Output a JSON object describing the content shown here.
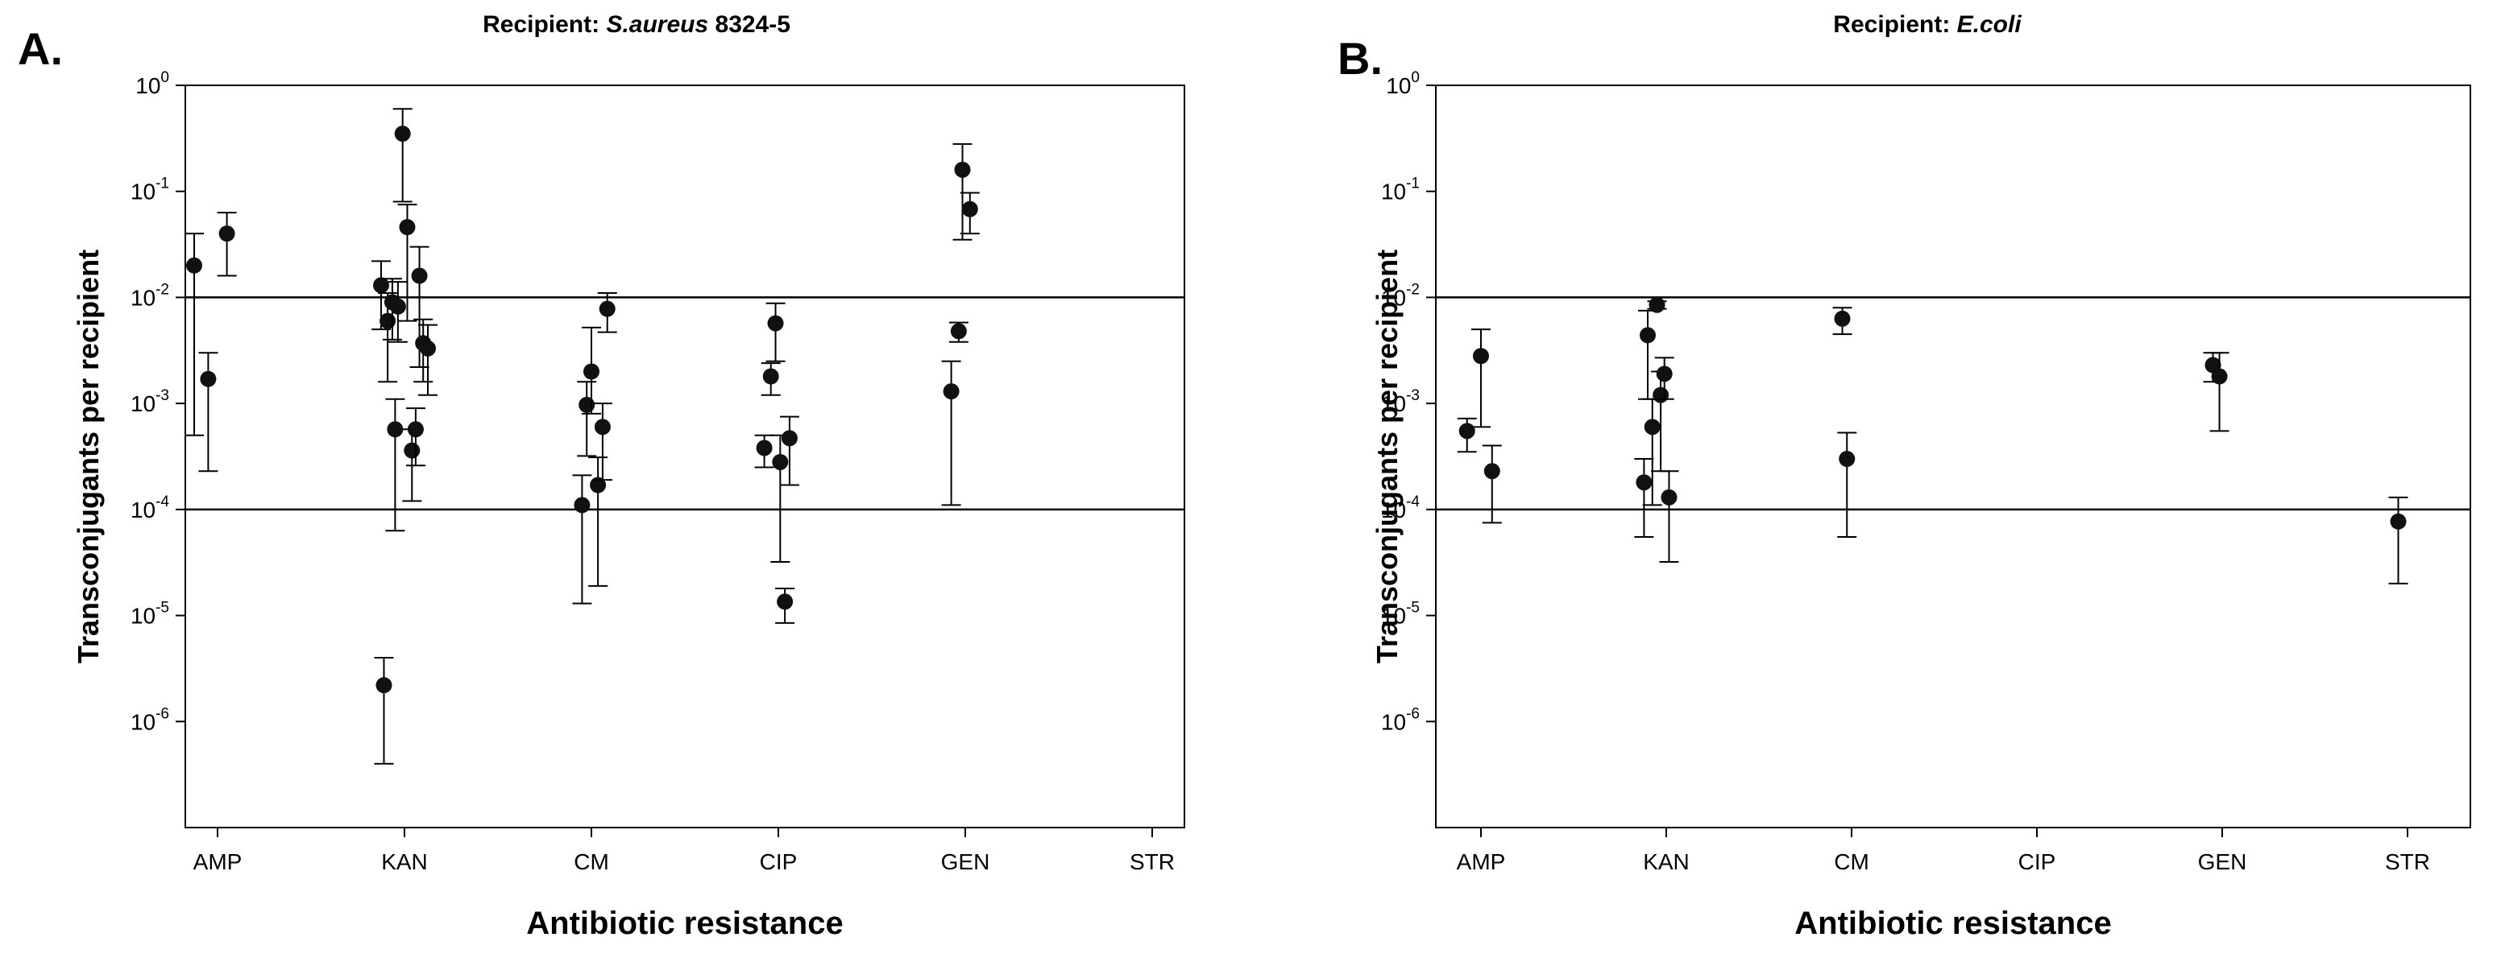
{
  "chart_data": [
    {
      "type": "scatter",
      "panel_label": "A.",
      "title_prefix": "Recipient: ",
      "title_species": "S.aureus",
      "title_suffix": " 8324-5",
      "xlabel": "Antibiotic resistance",
      "ylabel": "Transconjugants per recipient",
      "y_scale": "log",
      "ylim_exponent": [
        -7,
        0
      ],
      "y_ticks": [
        {
          "base": "10",
          "exp": "0"
        },
        {
          "base": "10",
          "exp": "-1"
        },
        {
          "base": "10",
          "exp": "-2"
        },
        {
          "base": "10",
          "exp": "-3"
        },
        {
          "base": "10",
          "exp": "-4"
        },
        {
          "base": "10",
          "exp": "-5"
        },
        {
          "base": "10",
          "exp": "-6"
        }
      ],
      "categories": [
        "AMP",
        "KAN",
        "CM",
        "CIP",
        "GEN",
        "STR"
      ],
      "reference_lines": [
        0.01,
        0.0001
      ],
      "points": [
        {
          "x": -0.25,
          "y": 0.02,
          "low": 0.0005,
          "high": 0.04
        },
        {
          "x": -0.1,
          "y": 0.0017,
          "low": 0.00023,
          "high": 0.003
        },
        {
          "x": 0.1,
          "y": 0.04,
          "low": 0.016,
          "high": 0.063
        },
        {
          "x": 1.75,
          "y": 0.013,
          "low": 0.005,
          "high": 0.022
        },
        {
          "x": 1.82,
          "y": 0.006,
          "low": 0.0016,
          "high": 0.011
        },
        {
          "x": 1.87,
          "y": 0.009,
          "low": 0.004,
          "high": 0.015
        },
        {
          "x": 1.93,
          "y": 0.0082,
          "low": 0.0038,
          "high": 0.014
        },
        {
          "x": 1.9,
          "y": 0.00057,
          "low": 6.3e-05,
          "high": 0.0011
        },
        {
          "x": 1.98,
          "y": 0.35,
          "low": 0.08,
          "high": 0.6
        },
        {
          "x": 2.03,
          "y": 0.046,
          "low": 0.006,
          "high": 0.075
        },
        {
          "x": 2.08,
          "y": 0.00036,
          "low": 0.00012,
          "high": 0.00057
        },
        {
          "x": 2.12,
          "y": 0.00057,
          "low": 0.00026,
          "high": 0.0009
        },
        {
          "x": 2.16,
          "y": 0.016,
          "low": 0.0022,
          "high": 0.03
        },
        {
          "x": 2.2,
          "y": 0.0037,
          "low": 0.0016,
          "high": 0.0062
        },
        {
          "x": 2.25,
          "y": 0.0033,
          "low": 0.0012,
          "high": 0.0055
        },
        {
          "x": 1.78,
          "y": 2.2e-06,
          "low": 4e-07,
          "high": 4e-06
        },
        {
          "x": 3.9,
          "y": 0.00011,
          "low": 1.3e-05,
          "high": 0.00021
        },
        {
          "x": 3.95,
          "y": 0.00097,
          "low": 0.00032,
          "high": 0.0016
        },
        {
          "x": 4.0,
          "y": 0.002,
          "low": 0.0008,
          "high": 0.0052
        },
        {
          "x": 4.07,
          "y": 0.00017,
          "low": 1.9e-05,
          "high": 0.00031
        },
        {
          "x": 4.12,
          "y": 0.0006,
          "low": 0.00019,
          "high": 0.001
        },
        {
          "x": 4.17,
          "y": 0.0078,
          "low": 0.0047,
          "high": 0.011
        },
        {
          "x": 5.85,
          "y": 0.00038,
          "low": 0.00025,
          "high": 0.0005
        },
        {
          "x": 5.92,
          "y": 0.0018,
          "low": 0.0012,
          "high": 0.0024
        },
        {
          "x": 5.97,
          "y": 0.0057,
          "low": 0.0025,
          "high": 0.0088
        },
        {
          "x": 6.02,
          "y": 0.00028,
          "low": 3.2e-05,
          "high": 0.0005
        },
        {
          "x": 6.07,
          "y": 1.35e-05,
          "low": 8.5e-06,
          "high": 1.8e-05
        },
        {
          "x": 6.12,
          "y": 0.00047,
          "low": 0.00017,
          "high": 0.00075
        },
        {
          "x": 7.85,
          "y": 0.0013,
          "low": 0.00011,
          "high": 0.0025
        },
        {
          "x": 7.93,
          "y": 0.0048,
          "low": 0.0038,
          "high": 0.0058
        },
        {
          "x": 7.97,
          "y": 0.16,
          "low": 0.035,
          "high": 0.28
        },
        {
          "x": 8.05,
          "y": 0.068,
          "low": 0.04,
          "high": 0.097
        }
      ]
    },
    {
      "type": "scatter",
      "panel_label": "B.",
      "title_prefix": "Recipient: ",
      "title_species": "E.coli",
      "title_suffix": "",
      "xlabel": "Antibiotic resistance",
      "ylabel": "Transconjugants per recipient",
      "y_scale": "log",
      "ylim_exponent": [
        -7,
        0
      ],
      "y_ticks": [
        {
          "base": "10",
          "exp": "0"
        },
        {
          "base": "10",
          "exp": "-1"
        },
        {
          "base": "10",
          "exp": "-2"
        },
        {
          "base": "10",
          "exp": "-3"
        },
        {
          "base": "10",
          "exp": "-4"
        },
        {
          "base": "10",
          "exp": "-5"
        },
        {
          "base": "10",
          "exp": "-6"
        }
      ],
      "categories": [
        "AMP",
        "KAN",
        "CM",
        "CIP",
        "GEN",
        "STR"
      ],
      "reference_lines": [
        0.01,
        0.0001
      ],
      "points": [
        {
          "x": -0.15,
          "y": 0.00055,
          "low": 0.00035,
          "high": 0.00072
        },
        {
          "x": 0.0,
          "y": 0.0028,
          "low": 0.0006,
          "high": 0.005
        },
        {
          "x": 0.12,
          "y": 0.00023,
          "low": 7.5e-05,
          "high": 0.0004
        },
        {
          "x": 1.76,
          "y": 0.00018,
          "low": 5.5e-05,
          "high": 0.0003
        },
        {
          "x": 1.8,
          "y": 0.0044,
          "low": 0.0011,
          "high": 0.0075
        },
        {
          "x": 1.85,
          "y": 0.0006,
          "low": 0.00011,
          "high": 0.0011
        },
        {
          "x": 1.9,
          "y": 0.0085,
          "low": 0.0078,
          "high": 0.0092
        },
        {
          "x": 1.94,
          "y": 0.0012,
          "low": 0.00023,
          "high": 0.002
        },
        {
          "x": 1.98,
          "y": 0.0019,
          "low": 0.0011,
          "high": 0.0027
        },
        {
          "x": 2.03,
          "y": 0.00013,
          "low": 3.2e-05,
          "high": 0.00023
        },
        {
          "x": 3.9,
          "y": 0.0063,
          "low": 0.0045,
          "high": 0.008
        },
        {
          "x": 3.95,
          "y": 0.0003,
          "low": 5.5e-05,
          "high": 0.00053
        },
        {
          "x": 7.9,
          "y": 0.0023,
          "low": 0.0016,
          "high": 0.003
        },
        {
          "x": 7.97,
          "y": 0.0018,
          "low": 0.00055,
          "high": 0.003
        },
        {
          "x": 9.9,
          "y": 7.7e-05,
          "low": 2e-05,
          "high": 0.00013
        }
      ]
    }
  ]
}
